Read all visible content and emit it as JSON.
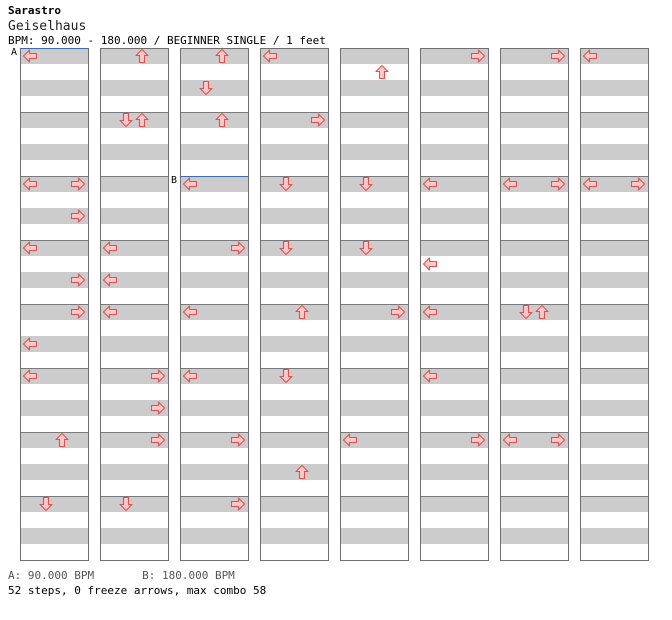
{
  "header": {
    "title": "Sarastro",
    "song": "Geiselhaus",
    "info": "BPM: 90.000 - 180.000 / BEGINNER SINGLE / 1 feet"
  },
  "footer": {
    "bpm_a": "A: 90.000 BPM",
    "bpm_b": "B: 180.000 BPM",
    "stats": "52 steps, 0 freeze arrows, max combo 58"
  },
  "bpm_markers": [
    {
      "label": "A",
      "column": 0,
      "row": 0
    },
    {
      "label": "B",
      "column": 2,
      "row": 8
    }
  ],
  "colors": {
    "arrow_fill": "#ffc8c8",
    "arrow_stroke": "#e05050",
    "stripe": "#cccccc",
    "bpm_line": "#3b6db4"
  },
  "lanes": [
    "left",
    "down",
    "up",
    "right"
  ],
  "arrows": [
    {
      "column": 0,
      "row": 0,
      "dir": "left"
    },
    {
      "column": 0,
      "row": 8,
      "dir": "left"
    },
    {
      "column": 0,
      "row": 8,
      "dir": "right"
    },
    {
      "column": 0,
      "row": 10,
      "dir": "right"
    },
    {
      "column": 0,
      "row": 12,
      "dir": "left"
    },
    {
      "column": 0,
      "row": 14,
      "dir": "right"
    },
    {
      "column": 0,
      "row": 16,
      "dir": "right"
    },
    {
      "column": 0,
      "row": 18,
      "dir": "left"
    },
    {
      "column": 0,
      "row": 20,
      "dir": "left"
    },
    {
      "column": 0,
      "row": 24,
      "dir": "up"
    },
    {
      "column": 0,
      "row": 28,
      "dir": "down"
    },
    {
      "column": 1,
      "row": 0,
      "dir": "up"
    },
    {
      "column": 1,
      "row": 4,
      "dir": "down"
    },
    {
      "column": 1,
      "row": 4,
      "dir": "up"
    },
    {
      "column": 1,
      "row": 12,
      "dir": "left"
    },
    {
      "column": 1,
      "row": 14,
      "dir": "left"
    },
    {
      "column": 1,
      "row": 16,
      "dir": "left"
    },
    {
      "column": 1,
      "row": 20,
      "dir": "right"
    },
    {
      "column": 1,
      "row": 22,
      "dir": "right"
    },
    {
      "column": 1,
      "row": 24,
      "dir": "right"
    },
    {
      "column": 1,
      "row": 28,
      "dir": "down"
    },
    {
      "column": 2,
      "row": 0,
      "dir": "up"
    },
    {
      "column": 2,
      "row": 2,
      "dir": "down"
    },
    {
      "column": 2,
      "row": 4,
      "dir": "up"
    },
    {
      "column": 2,
      "row": 8,
      "dir": "left"
    },
    {
      "column": 2,
      "row": 12,
      "dir": "right"
    },
    {
      "column": 2,
      "row": 16,
      "dir": "left"
    },
    {
      "column": 2,
      "row": 20,
      "dir": "left"
    },
    {
      "column": 2,
      "row": 24,
      "dir": "right"
    },
    {
      "column": 2,
      "row": 28,
      "dir": "right"
    },
    {
      "column": 3,
      "row": 0,
      "dir": "left"
    },
    {
      "column": 3,
      "row": 4,
      "dir": "right"
    },
    {
      "column": 3,
      "row": 8,
      "dir": "down"
    },
    {
      "column": 3,
      "row": 12,
      "dir": "down"
    },
    {
      "column": 3,
      "row": 16,
      "dir": "up"
    },
    {
      "column": 3,
      "row": 20,
      "dir": "down"
    },
    {
      "column": 3,
      "row": 26,
      "dir": "up"
    },
    {
      "column": 4,
      "row": 1,
      "dir": "up"
    },
    {
      "column": 4,
      "row": 8,
      "dir": "down"
    },
    {
      "column": 4,
      "row": 12,
      "dir": "down"
    },
    {
      "column": 4,
      "row": 16,
      "dir": "right"
    },
    {
      "column": 4,
      "row": 24,
      "dir": "left"
    },
    {
      "column": 5,
      "row": 0,
      "dir": "right"
    },
    {
      "column": 5,
      "row": 8,
      "dir": "left"
    },
    {
      "column": 5,
      "row": 13,
      "dir": "left"
    },
    {
      "column": 5,
      "row": 16,
      "dir": "left"
    },
    {
      "column": 5,
      "row": 20,
      "dir": "left"
    },
    {
      "column": 5,
      "row": 24,
      "dir": "right"
    },
    {
      "column": 6,
      "row": 0,
      "dir": "right"
    },
    {
      "column": 6,
      "row": 8,
      "dir": "left"
    },
    {
      "column": 6,
      "row": 8,
      "dir": "right"
    },
    {
      "column": 6,
      "row": 16,
      "dir": "down"
    },
    {
      "column": 6,
      "row": 16,
      "dir": "up"
    },
    {
      "column": 6,
      "row": 24,
      "dir": "left"
    },
    {
      "column": 6,
      "row": 24,
      "dir": "right"
    },
    {
      "column": 7,
      "row": 0,
      "dir": "left"
    },
    {
      "column": 7,
      "row": 8,
      "dir": "left"
    },
    {
      "column": 7,
      "row": 8,
      "dir": "right"
    }
  ]
}
